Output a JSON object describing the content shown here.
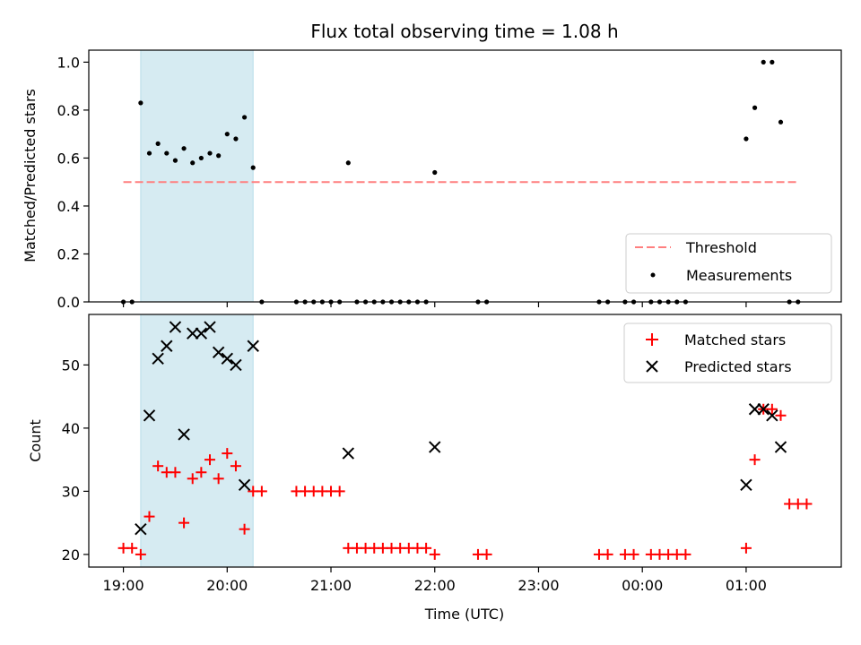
{
  "chart_data": [
    {
      "type": "scatter",
      "title": "Flux total observing time = 1.08 h",
      "ylabel": "Matched/Predicted stars",
      "xlabel": "",
      "xlim": [
        "18:40",
        "01:55"
      ],
      "ylim": [
        0,
        1.05
      ],
      "yticks": [
        0.0,
        0.2,
        0.4,
        0.6,
        0.8,
        1.0
      ],
      "ytick_labels": [
        "0.0",
        "0.2",
        "0.4",
        "0.6",
        "0.8",
        "1.0"
      ],
      "shaded_span": [
        "19:10",
        "20:15"
      ],
      "threshold": {
        "name": "Threshold",
        "value": 0.5,
        "x": [
          "19:00",
          "01:30"
        ],
        "color": "#ff7f7f"
      },
      "legend": {
        "position": "lower-right",
        "entries": [
          "Threshold",
          "Measurements"
        ]
      },
      "series": [
        {
          "name": "Measurements",
          "color": "#000000",
          "points": [
            [
              "19:00",
              0
            ],
            [
              "19:05",
              0
            ],
            [
              "19:10",
              0.83
            ],
            [
              "19:15",
              0.62
            ],
            [
              "19:20",
              0.66
            ],
            [
              "19:25",
              0.62
            ],
            [
              "19:30",
              0.59
            ],
            [
              "19:35",
              0.64
            ],
            [
              "19:40",
              0.58
            ],
            [
              "19:45",
              0.6
            ],
            [
              "19:50",
              0.62
            ],
            [
              "19:55",
              0.61
            ],
            [
              "20:00",
              0.7
            ],
            [
              "20:05",
              0.68
            ],
            [
              "20:10",
              0.77
            ],
            [
              "20:15",
              0.56
            ],
            [
              "20:20",
              0
            ],
            [
              "20:40",
              0
            ],
            [
              "20:45",
              0
            ],
            [
              "20:50",
              0
            ],
            [
              "20:55",
              0
            ],
            [
              "21:00",
              0
            ],
            [
              "21:05",
              0
            ],
            [
              "21:10",
              0.58
            ],
            [
              "21:15",
              0
            ],
            [
              "21:20",
              0
            ],
            [
              "21:25",
              0
            ],
            [
              "21:30",
              0
            ],
            [
              "21:35",
              0
            ],
            [
              "21:40",
              0
            ],
            [
              "21:45",
              0
            ],
            [
              "21:50",
              0
            ],
            [
              "21:55",
              0
            ],
            [
              "22:00",
              0.54
            ],
            [
              "22:25",
              0
            ],
            [
              "22:30",
              0
            ],
            [
              "23:35",
              0
            ],
            [
              "23:40",
              0
            ],
            [
              "23:50",
              0
            ],
            [
              "23:55",
              0
            ],
            [
              "00:05",
              0
            ],
            [
              "00:10",
              0
            ],
            [
              "00:15",
              0
            ],
            [
              "00:20",
              0
            ],
            [
              "00:25",
              0
            ],
            [
              "01:00",
              0.68
            ],
            [
              "01:05",
              0.81
            ],
            [
              "01:10",
              1.0
            ],
            [
              "01:15",
              1.0
            ],
            [
              "01:20",
              0.75
            ],
            [
              "01:25",
              0
            ],
            [
              "01:30",
              0
            ]
          ]
        }
      ]
    },
    {
      "type": "scatter",
      "title": "",
      "ylabel": "Count",
      "xlabel": "Time (UTC)",
      "xlim": [
        "18:40",
        "01:55"
      ],
      "ylim": [
        18,
        58
      ],
      "yticks": [
        20,
        30,
        40,
        50
      ],
      "ytick_labels": [
        "20",
        "30",
        "40",
        "50"
      ],
      "xticks": [
        "19:00",
        "20:00",
        "21:00",
        "22:00",
        "23:00",
        "00:00",
        "01:00"
      ],
      "xtick_labels": [
        "19:00",
        "20:00",
        "21:00",
        "22:00",
        "23:00",
        "00:00",
        "01:00"
      ],
      "shaded_span": [
        "19:10",
        "20:15"
      ],
      "legend": {
        "position": "upper-right",
        "entries": [
          "Matched stars",
          "Predicted stars"
        ]
      },
      "series": [
        {
          "name": "Matched stars",
          "marker": "plus",
          "color": "#ff0000",
          "points": [
            [
              "19:00",
              21
            ],
            [
              "19:05",
              21
            ],
            [
              "19:10",
              20
            ],
            [
              "19:15",
              26
            ],
            [
              "19:20",
              34
            ],
            [
              "19:25",
              33
            ],
            [
              "19:30",
              33
            ],
            [
              "19:35",
              25
            ],
            [
              "19:40",
              32
            ],
            [
              "19:45",
              33
            ],
            [
              "19:50",
              35
            ],
            [
              "19:55",
              32
            ],
            [
              "20:00",
              36
            ],
            [
              "20:05",
              34
            ],
            [
              "20:10",
              24
            ],
            [
              "20:15",
              30
            ],
            [
              "20:20",
              30
            ],
            [
              "20:40",
              30
            ],
            [
              "20:45",
              30
            ],
            [
              "20:50",
              30
            ],
            [
              "20:55",
              30
            ],
            [
              "21:00",
              30
            ],
            [
              "21:05",
              30
            ],
            [
              "21:10",
              21
            ],
            [
              "21:15",
              21
            ],
            [
              "21:20",
              21
            ],
            [
              "21:25",
              21
            ],
            [
              "21:30",
              21
            ],
            [
              "21:35",
              21
            ],
            [
              "21:40",
              21
            ],
            [
              "21:45",
              21
            ],
            [
              "21:50",
              21
            ],
            [
              "21:55",
              21
            ],
            [
              "22:00",
              20
            ],
            [
              "22:25",
              20
            ],
            [
              "22:30",
              20
            ],
            [
              "23:35",
              20
            ],
            [
              "23:40",
              20
            ],
            [
              "23:50",
              20
            ],
            [
              "23:55",
              20
            ],
            [
              "00:05",
              20
            ],
            [
              "00:10",
              20
            ],
            [
              "00:15",
              20
            ],
            [
              "00:20",
              20
            ],
            [
              "00:25",
              20
            ],
            [
              "01:00",
              21
            ],
            [
              "01:05",
              35
            ],
            [
              "01:10",
              43
            ],
            [
              "01:15",
              43
            ],
            [
              "01:20",
              42
            ],
            [
              "01:25",
              28
            ],
            [
              "01:30",
              28
            ],
            [
              "01:35",
              28
            ]
          ]
        },
        {
          "name": "Predicted stars",
          "marker": "x",
          "color": "#000000",
          "points": [
            [
              "19:10",
              24
            ],
            [
              "19:15",
              42
            ],
            [
              "19:20",
              51
            ],
            [
              "19:25",
              53
            ],
            [
              "19:30",
              56
            ],
            [
              "19:35",
              39
            ],
            [
              "19:40",
              55
            ],
            [
              "19:45",
              55
            ],
            [
              "19:50",
              56
            ],
            [
              "19:55",
              52
            ],
            [
              "20:00",
              51
            ],
            [
              "20:05",
              50
            ],
            [
              "20:10",
              31
            ],
            [
              "20:15",
              53
            ],
            [
              "21:10",
              36
            ],
            [
              "22:00",
              37
            ],
            [
              "01:00",
              31
            ],
            [
              "01:05",
              43
            ],
            [
              "01:10",
              43
            ],
            [
              "01:15",
              42
            ],
            [
              "01:20",
              37
            ]
          ]
        }
      ]
    }
  ]
}
